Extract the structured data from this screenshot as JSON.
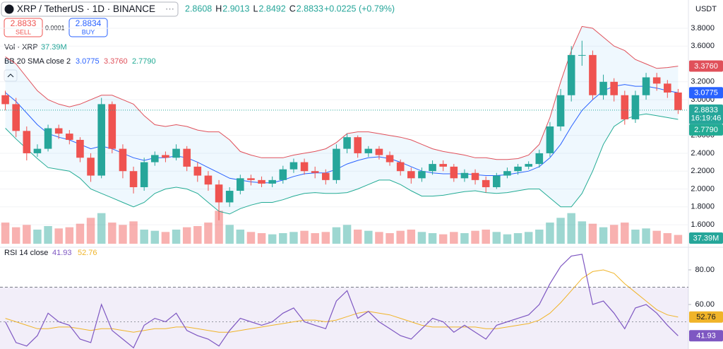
{
  "header": {
    "symbol": "XRP / TetherUS · 1D · BINANCE",
    "ohlc": [
      "2.8608",
      "H",
      "2.9013",
      "L",
      "2.8492",
      "C",
      "2.8833",
      "+0.0225 (+0.79%)"
    ],
    "sell_price": "2.8833",
    "sell": "SELL",
    "spread": "0.0001",
    "buy_price": "2.8834",
    "buy": "BUY",
    "currency": "USDT"
  },
  "chart_data": [
    {
      "type": "candlestick",
      "color_up": "#26a69a",
      "color_down": "#ef5350",
      "open": [
        3.05,
        2.95,
        2.65,
        2.4,
        2.45,
        2.68,
        2.62,
        2.55,
        2.35,
        2.15,
        2.95,
        2.45,
        2.2,
        2.02,
        2.3,
        2.38,
        2.35,
        2.45,
        2.25,
        2.15,
        2.05,
        1.85,
        1.98,
        2.12,
        2.1,
        2.06,
        2.1,
        2.22,
        2.3,
        2.2,
        2.18,
        2.1,
        2.45,
        2.58,
        2.4,
        2.45,
        2.38,
        2.3,
        2.2,
        2.12,
        2.2,
        2.28,
        2.25,
        2.12,
        2.18,
        2.1,
        2.02,
        2.15,
        2.2,
        2.25,
        2.28,
        2.4,
        2.7,
        3.05,
        3.5,
        3.5,
        3.05,
        3.2,
        3.05,
        2.78,
        3.05,
        3.25,
        3.18,
        3.08
      ],
      "high": [
        3.1,
        3.02,
        2.7,
        2.5,
        2.72,
        2.72,
        2.66,
        2.58,
        2.4,
        3.02,
        2.98,
        2.5,
        2.25,
        2.35,
        2.42,
        2.42,
        2.5,
        2.48,
        2.3,
        2.2,
        2.1,
        2.02,
        2.16,
        2.16,
        2.14,
        2.14,
        2.26,
        2.34,
        2.34,
        2.25,
        2.22,
        2.5,
        2.62,
        2.6,
        2.48,
        2.48,
        2.42,
        2.33,
        2.24,
        2.24,
        2.32,
        2.32,
        2.28,
        2.22,
        2.22,
        2.14,
        2.18,
        2.24,
        2.28,
        2.31,
        2.44,
        2.75,
        3.12,
        3.6,
        3.66,
        3.55,
        3.28,
        3.24,
        3.1,
        3.1,
        3.3,
        3.3,
        3.22,
        3.12
      ],
      "low": [
        2.88,
        2.58,
        2.32,
        2.36,
        2.42,
        2.56,
        2.5,
        2.3,
        2.08,
        2.12,
        2.4,
        2.12,
        1.95,
        1.98,
        2.26,
        2.3,
        2.32,
        2.2,
        2.08,
        1.98,
        1.65,
        1.8,
        1.94,
        2.04,
        2.02,
        2.02,
        2.06,
        2.18,
        2.16,
        2.12,
        2.05,
        2.06,
        2.4,
        2.35,
        2.36,
        2.33,
        2.26,
        2.15,
        2.06,
        2.08,
        2.16,
        2.2,
        2.08,
        2.08,
        2.05,
        1.96,
        2.0,
        2.12,
        2.16,
        2.22,
        2.24,
        2.36,
        2.65,
        2.98,
        3.38,
        3.0,
        3.0,
        2.98,
        2.72,
        2.74,
        3.0,
        3.1,
        3.02,
        2.84
      ],
      "close": [
        2.95,
        2.65,
        2.4,
        2.45,
        2.68,
        2.62,
        2.55,
        2.35,
        2.15,
        2.95,
        2.45,
        2.2,
        2.02,
        2.3,
        2.38,
        2.35,
        2.45,
        2.25,
        2.15,
        2.05,
        1.85,
        1.98,
        2.12,
        2.1,
        2.06,
        2.1,
        2.22,
        2.3,
        2.2,
        2.18,
        2.1,
        2.45,
        2.58,
        2.4,
        2.45,
        2.38,
        2.3,
        2.2,
        2.12,
        2.2,
        2.28,
        2.25,
        2.12,
        2.18,
        2.1,
        2.02,
        2.15,
        2.2,
        2.25,
        2.28,
        2.4,
        2.7,
        3.05,
        3.5,
        3.5,
        3.05,
        3.2,
        3.05,
        2.78,
        3.05,
        3.25,
        3.18,
        3.08,
        2.8833
      ],
      "last_price_label": "2.8833",
      "countdown": "16:19:46",
      "ylim": [
        1.387,
        3.942
      ],
      "yticks": [
        {
          "value": 1.6,
          "label": "1.6000"
        },
        {
          "value": 1.8,
          "label": "1.8000"
        },
        {
          "value": 2.0,
          "label": "2.0000"
        },
        {
          "value": 2.2,
          "label": "2.2000"
        },
        {
          "value": 2.4,
          "label": "2.4000"
        },
        {
          "value": 2.6,
          "label": "2.6000"
        },
        {
          "value": 3.0,
          "label": "3.0000"
        },
        {
          "value": 3.2,
          "label": "3.2000"
        },
        {
          "value": 3.6,
          "label": "3.6000"
        },
        {
          "value": 3.8,
          "label": "3.8000"
        }
      ],
      "volume": {
        "name": "Vol · XRP",
        "last_label": "37.39M",
        "ylim": [
          0,
          300
        ],
        "values": [
          90,
          70,
          80,
          60,
          75,
          65,
          70,
          85,
          110,
          130,
          90,
          80,
          95,
          60,
          55,
          50,
          60,
          70,
          75,
          90,
          140,
          80,
          60,
          50,
          45,
          40,
          45,
          50,
          55,
          45,
          50,
          70,
          80,
          60,
          55,
          50,
          45,
          55,
          60,
          50,
          45,
          40,
          50,
          45,
          55,
          60,
          50,
          40,
          45,
          50,
          60,
          90,
          110,
          130,
          95,
          85,
          70,
          80,
          90,
          60,
          65,
          55,
          45,
          37.39
        ]
      },
      "bollinger": {
        "name": "BB 20 SMA close 2",
        "basis_label": "3.0775",
        "upper_label": "3.3760",
        "lower_label": "2.7790",
        "basis_color": "#2962ff",
        "upper_color": "#e0505a",
        "lower_color": "#22ab94",
        "upper": [
          3.48,
          3.4,
          3.25,
          3.1,
          3.0,
          2.95,
          2.92,
          2.95,
          3.0,
          3.05,
          3.05,
          3.0,
          2.95,
          2.82,
          2.72,
          2.7,
          2.72,
          2.7,
          2.66,
          2.64,
          2.64,
          2.55,
          2.42,
          2.38,
          2.35,
          2.35,
          2.35,
          2.38,
          2.4,
          2.42,
          2.45,
          2.52,
          2.62,
          2.64,
          2.64,
          2.62,
          2.6,
          2.58,
          2.55,
          2.5,
          2.45,
          2.42,
          2.4,
          2.38,
          2.35,
          2.35,
          2.33,
          2.33,
          2.34,
          2.38,
          2.5,
          2.8,
          3.2,
          3.55,
          3.82,
          3.8,
          3.7,
          3.6,
          3.55,
          3.45,
          3.4,
          3.35,
          3.36,
          3.376
        ],
        "basis": [
          3.08,
          2.98,
          2.85,
          2.72,
          2.62,
          2.58,
          2.55,
          2.5,
          2.45,
          2.48,
          2.45,
          2.4,
          2.35,
          2.32,
          2.35,
          2.35,
          2.37,
          2.35,
          2.3,
          2.24,
          2.18,
          2.12,
          2.1,
          2.08,
          2.07,
          2.07,
          2.1,
          2.14,
          2.17,
          2.18,
          2.18,
          2.22,
          2.28,
          2.32,
          2.35,
          2.36,
          2.34,
          2.3,
          2.25,
          2.2,
          2.18,
          2.17,
          2.17,
          2.17,
          2.16,
          2.15,
          2.15,
          2.16,
          2.18,
          2.2,
          2.25,
          2.35,
          2.5,
          2.7,
          2.88,
          3.0,
          3.1,
          3.15,
          3.17,
          3.15,
          3.15,
          3.13,
          3.1,
          3.0775
        ],
        "lower": [
          2.68,
          2.56,
          2.45,
          2.34,
          2.24,
          2.22,
          2.2,
          2.12,
          2.0,
          1.95,
          1.9,
          1.85,
          1.8,
          1.85,
          1.95,
          2.0,
          2.02,
          2.0,
          1.95,
          1.85,
          1.75,
          1.72,
          1.78,
          1.82,
          1.85,
          1.85,
          1.88,
          1.92,
          1.95,
          1.96,
          1.95,
          1.95,
          1.96,
          2.0,
          2.05,
          2.1,
          2.1,
          2.05,
          1.98,
          1.92,
          1.92,
          1.93,
          1.95,
          1.97,
          1.98,
          1.96,
          1.95,
          1.96,
          1.98,
          2.0,
          2.0,
          1.9,
          1.8,
          1.8,
          1.95,
          2.2,
          2.5,
          2.7,
          2.78,
          2.82,
          2.84,
          2.82,
          2.8,
          2.779
        ]
      }
    },
    {
      "type": "rsi",
      "name": "RSI 14 close",
      "color": "#7e57c2",
      "ma_color": "#f0b429",
      "values": [
        50,
        38,
        36,
        42,
        55,
        50,
        48,
        40,
        38,
        60,
        45,
        40,
        35,
        48,
        52,
        50,
        55,
        45,
        42,
        40,
        36,
        45,
        52,
        50,
        48,
        50,
        55,
        58,
        50,
        48,
        46,
        62,
        68,
        52,
        56,
        50,
        46,
        42,
        40,
        46,
        52,
        50,
        44,
        48,
        44,
        40,
        48,
        50,
        52,
        54,
        60,
        72,
        82,
        88,
        89,
        60,
        62,
        55,
        46,
        58,
        60,
        55,
        48,
        41.93
      ],
      "ma": [
        52,
        50,
        48,
        46,
        46,
        47,
        47,
        46,
        45,
        46,
        46,
        45,
        44,
        45,
        46,
        46,
        47,
        47,
        46,
        45,
        44,
        44,
        45,
        46,
        47,
        48,
        49,
        50,
        51,
        51,
        50,
        51,
        53,
        55,
        56,
        55,
        54,
        52,
        50,
        48,
        47,
        47,
        47,
        47,
        47,
        46,
        46,
        47,
        48,
        49,
        51,
        55,
        61,
        68,
        75,
        79,
        80,
        78,
        72,
        67,
        62,
        57,
        54,
        52.76
      ],
      "band": [
        30,
        70
      ],
      "midline": 50,
      "ylim": [
        34.3,
        91
      ],
      "yticks": [
        {
          "value": 60,
          "label": "60.00"
        },
        {
          "value": 80,
          "label": "80.00"
        }
      ]
    }
  ]
}
